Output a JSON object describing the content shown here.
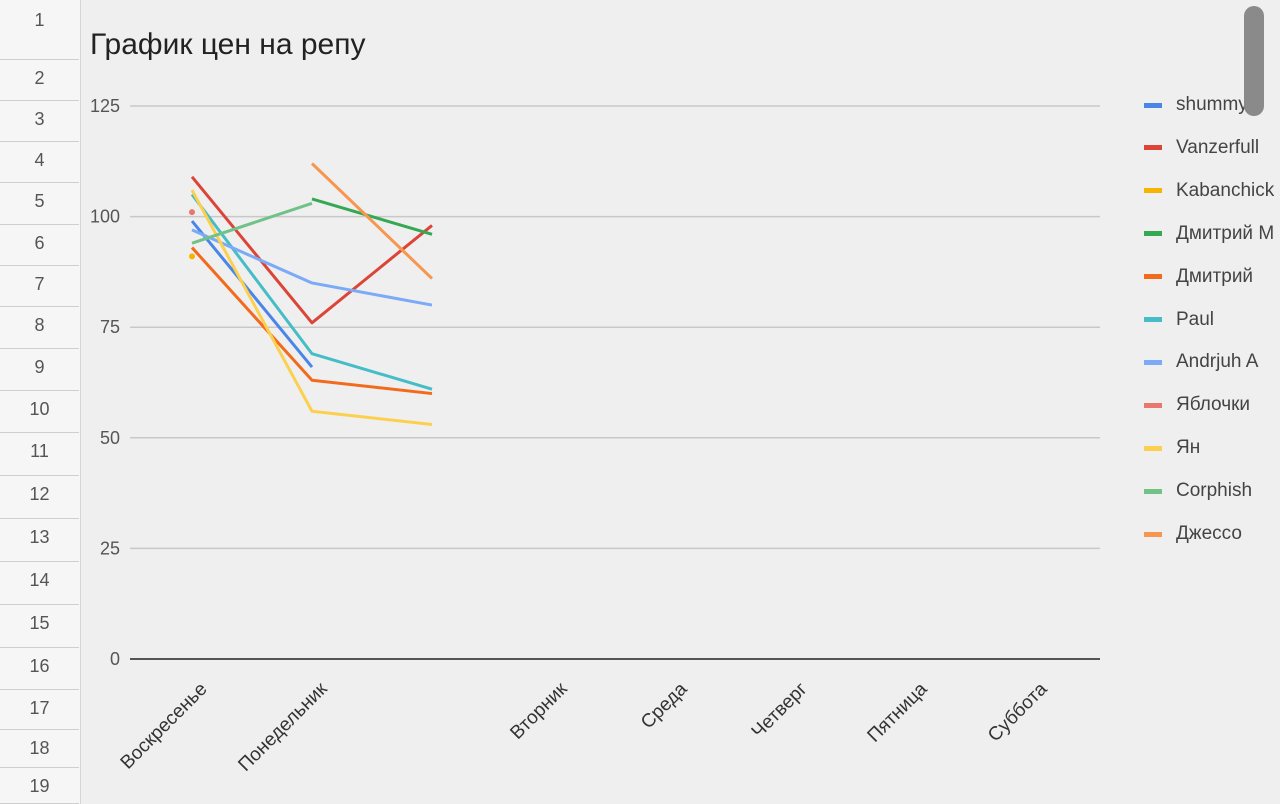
{
  "spreadsheet": {
    "row_numbers": [
      "1",
      "2",
      "3",
      "4",
      "5",
      "6",
      "7",
      "8",
      "9",
      "10",
      "11",
      "12",
      "13",
      "14",
      "15",
      "16",
      "17",
      "18",
      "19"
    ]
  },
  "chart_data": {
    "type": "line",
    "title": "График цен на репу",
    "xlabel": "",
    "ylabel": "",
    "ylim": [
      0,
      125
    ],
    "y_ticks": [
      "0",
      "25",
      "50",
      "75",
      "100",
      "125"
    ],
    "grid": true,
    "legend_position": "right",
    "categories": [
      "Воскресенье",
      "Понедельник",
      "",
      "Вторник",
      "Среда",
      "Четверг",
      "Пятница",
      "Суббота"
    ],
    "series": [
      {
        "name": "shummy",
        "color": "#4a86e8",
        "values": [
          99,
          66,
          null,
          null,
          null,
          null,
          null,
          null
        ]
      },
      {
        "name": "Vanzerfull",
        "color": "#db4437",
        "values": [
          109,
          76,
          98,
          null,
          null,
          null,
          null,
          null
        ]
      },
      {
        "name": "Kabanchick",
        "color": "#f4b400",
        "values": [
          91,
          null,
          null,
          null,
          null,
          null,
          null,
          null
        ]
      },
      {
        "name": "Дмитрий М",
        "color": "#34a853",
        "values": [
          null,
          104,
          96,
          null,
          null,
          null,
          null,
          null
        ]
      },
      {
        "name": "Дмитрий",
        "color": "#f26b1d",
        "values": [
          93,
          63,
          60,
          null,
          null,
          null,
          null,
          null
        ]
      },
      {
        "name": "Paul",
        "color": "#46bdc6",
        "values": [
          105,
          69,
          61,
          null,
          null,
          null,
          null,
          null
        ]
      },
      {
        "name": "Andrjuh A",
        "color": "#7baaf7",
        "values": [
          97,
          85,
          80,
          null,
          null,
          null,
          null,
          null
        ]
      },
      {
        "name": "Яблочки",
        "color": "#e8776c",
        "values": [
          101,
          null,
          null,
          null,
          null,
          null,
          null,
          null
        ]
      },
      {
        "name": "Ян",
        "color": "#fcd04f",
        "values": [
          106,
          56,
          53,
          null,
          null,
          null,
          null,
          null
        ]
      },
      {
        "name": "Corphish",
        "color": "#71c287",
        "values": [
          94,
          103,
          null,
          null,
          null,
          null,
          null,
          null
        ]
      },
      {
        "name": "Джессо",
        "color": "#f6964f",
        "values": [
          null,
          112,
          86,
          null,
          null,
          null,
          null,
          null
        ]
      }
    ]
  }
}
